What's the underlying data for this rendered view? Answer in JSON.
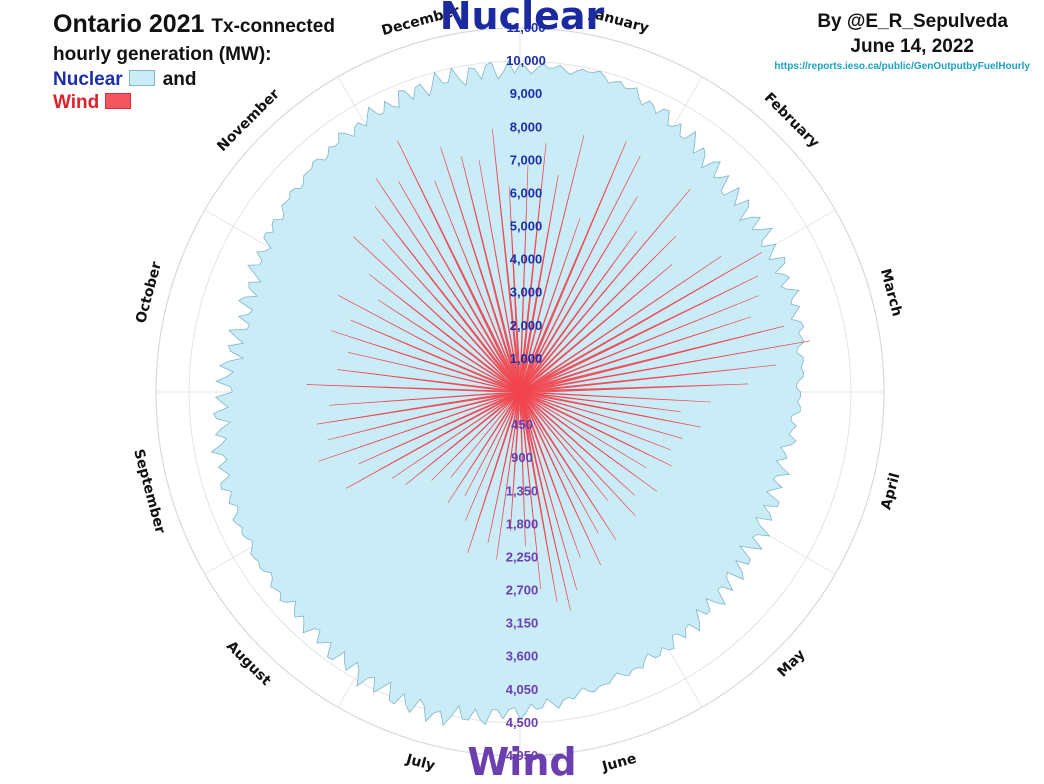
{
  "header": {
    "title_main": "Ontario 2021",
    "title_rest": "Tx-connected",
    "title_line2": "hourly generation (MW):",
    "legend_nuclear": "Nuclear",
    "legend_and": "and",
    "legend_wind": "Wind",
    "byline": "By @E_R_Sepulveda",
    "date": "June 14, 2022",
    "url": "https://reports.ieso.ca/public/GenOutputbyFuelHourly"
  },
  "colors": {
    "nuclear_fill": "#c9ecf7",
    "nuclear_stroke": "#7fb6c9",
    "wind_fill": "#f2434c",
    "nuclear_tick_color": "#1b2fa8",
    "wind_tick_color": "#6b3fb0"
  },
  "chart_data": {
    "type": "radial area (polar)",
    "top_label": "Nuclear",
    "bottom_label": "Wind",
    "months": [
      "January",
      "February",
      "March",
      "April",
      "May",
      "June",
      "July",
      "August",
      "September",
      "October",
      "November",
      "December"
    ],
    "nuclear_scale": {
      "direction": "up",
      "max": 11000,
      "ticks": [
        1000,
        2000,
        3000,
        4000,
        5000,
        6000,
        7000,
        8000,
        9000,
        10000,
        11000
      ],
      "tick_labels": [
        "1,000",
        "2,000",
        "3,000",
        "4,000",
        "5,000",
        "6,000",
        "7,000",
        "8,000",
        "9,000",
        "10,000",
        "11,000"
      ]
    },
    "wind_scale": {
      "direction": "down",
      "max": 4950,
      "ticks": [
        450,
        900,
        1350,
        1800,
        2250,
        2700,
        3150,
        3600,
        4050,
        4500,
        4950
      ],
      "tick_labels": [
        "450",
        "900",
        "1,350",
        "1,800",
        "2,250",
        "2,700",
        "3,150",
        "3,600",
        "4,050",
        "4,500",
        "4,950"
      ]
    },
    "nuclear_monthly_mw": [
      {
        "month": "January",
        "value": 9900
      },
      {
        "month": "February",
        "value": 8800
      },
      {
        "month": "March",
        "value": 8700
      },
      {
        "month": "April",
        "value": 8200
      },
      {
        "month": "May",
        "value": 8600
      },
      {
        "month": "June",
        "value": 9200
      },
      {
        "month": "July",
        "value": 10100
      },
      {
        "month": "August",
        "value": 9500
      },
      {
        "month": "September",
        "value": 9300
      },
      {
        "month": "October",
        "value": 8600
      },
      {
        "month": "November",
        "value": 9200
      },
      {
        "month": "December",
        "value": 9700
      }
    ],
    "wind_spikes": [
      {
        "deg": 2,
        "mw": 3100
      },
      {
        "deg": 6,
        "mw": 3400
      },
      {
        "deg": 10,
        "mw": 3000
      },
      {
        "deg": 14,
        "mw": 3600
      },
      {
        "deg": 19,
        "mw": 2500
      },
      {
        "deg": 23,
        "mw": 3700
      },
      {
        "deg": 27,
        "mw": 3600
      },
      {
        "deg": 31,
        "mw": 3100
      },
      {
        "deg": 36,
        "mw": 2700
      },
      {
        "deg": 40,
        "mw": 3600
      },
      {
        "deg": 45,
        "mw": 3000
      },
      {
        "deg": 50,
        "mw": 2700
      },
      {
        "deg": 56,
        "mw": 3300
      },
      {
        "deg": 60,
        "mw": 3800
      },
      {
        "deg": 64,
        "mw": 3600
      },
      {
        "deg": 68,
        "mw": 3500
      },
      {
        "deg": 72,
        "mw": 3300
      },
      {
        "deg": 76,
        "mw": 3700
      },
      {
        "deg": 80,
        "mw": 4000
      },
      {
        "deg": 84,
        "mw": 3500
      },
      {
        "deg": 88,
        "mw": 3100
      },
      {
        "deg": 93,
        "mw": 2600
      },
      {
        "deg": 97,
        "mw": 2200
      },
      {
        "deg": 101,
        "mw": 2500
      },
      {
        "deg": 106,
        "mw": 2300
      },
      {
        "deg": 111,
        "mw": 2200
      },
      {
        "deg": 116,
        "mw": 2300
      },
      {
        "deg": 121,
        "mw": 2000
      },
      {
        "deg": 126,
        "mw": 2300
      },
      {
        "deg": 132,
        "mw": 2100
      },
      {
        "deg": 137,
        "mw": 2300
      },
      {
        "deg": 141,
        "mw": 1900
      },
      {
        "deg": 147,
        "mw": 2400
      },
      {
        "deg": 151,
        "mw": 2200
      },
      {
        "deg": 155,
        "mw": 2600
      },
      {
        "deg": 160,
        "mw": 2400
      },
      {
        "deg": 164,
        "mw": 2800
      },
      {
        "deg": 167,
        "mw": 3050
      },
      {
        "deg": 170,
        "mw": 2900
      },
      {
        "deg": 174,
        "mw": 2700
      },
      {
        "deg": 178,
        "mw": 2100
      },
      {
        "deg": 184,
        "mw": 1900
      },
      {
        "deg": 188,
        "mw": 2300
      },
      {
        "deg": 192,
        "mw": 2100
      },
      {
        "deg": 198,
        "mw": 2300
      },
      {
        "deg": 203,
        "mw": 1900
      },
      {
        "deg": 208,
        "mw": 1600
      },
      {
        "deg": 213,
        "mw": 1800
      },
      {
        "deg": 219,
        "mw": 1500
      },
      {
        "deg": 225,
        "mw": 1700
      },
      {
        "deg": 231,
        "mw": 2000
      },
      {
        "deg": 236,
        "mw": 2100
      },
      {
        "deg": 241,
        "mw": 2700
      },
      {
        "deg": 246,
        "mw": 2400
      },
      {
        "deg": 251,
        "mw": 2900
      },
      {
        "deg": 256,
        "mw": 2700
      },
      {
        "deg": 261,
        "mw": 2800
      },
      {
        "deg": 266,
        "mw": 2600
      },
      {
        "deg": 272,
        "mw": 2900
      },
      {
        "deg": 277,
        "mw": 2500
      },
      {
        "deg": 283,
        "mw": 2400
      },
      {
        "deg": 288,
        "mw": 2700
      },
      {
        "deg": 293,
        "mw": 2500
      },
      {
        "deg": 298,
        "mw": 2800
      },
      {
        "deg": 303,
        "mw": 2300
      },
      {
        "deg": 308,
        "mw": 2600
      },
      {
        "deg": 313,
        "mw": 3100
      },
      {
        "deg": 318,
        "mw": 2800
      },
      {
        "deg": 322,
        "mw": 3200
      },
      {
        "deg": 326,
        "mw": 3500
      },
      {
        "deg": 330,
        "mw": 3300
      },
      {
        "deg": 334,
        "mw": 3800
      },
      {
        "deg": 338,
        "mw": 3100
      },
      {
        "deg": 342,
        "mw": 3500
      },
      {
        "deg": 346,
        "mw": 3300
      },
      {
        "deg": 350,
        "mw": 3200
      },
      {
        "deg": 354,
        "mw": 3600
      },
      {
        "deg": 357,
        "mw": 2800
      }
    ]
  }
}
